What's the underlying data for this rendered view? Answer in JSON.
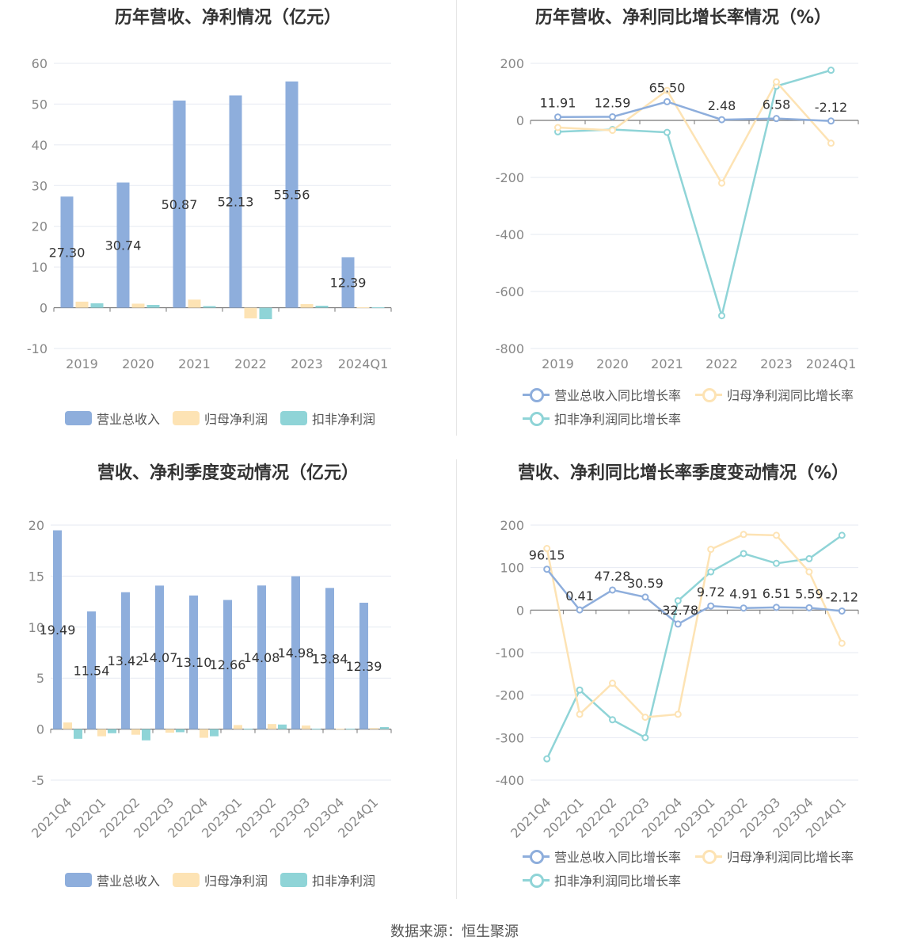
{
  "source_note": "数据来源：恒生聚源",
  "colors": {
    "revenue": "#8eaedc",
    "net_profit": "#fde3b4",
    "deducted": "#8fd4d7",
    "axis_text": "#888888",
    "grid": "#e6eaf2",
    "label": "#333333"
  },
  "chart_data": [
    {
      "type": "bar",
      "title": "历年营收、净利情况（亿元）",
      "categories": [
        "2019",
        "2020",
        "2021",
        "2022",
        "2023",
        "2024Q1"
      ],
      "ylim": [
        -10,
        60
      ],
      "yticks": [
        -10,
        0,
        10,
        20,
        30,
        40,
        50,
        60
      ],
      "grid": true,
      "legend_position": "bottom",
      "series": [
        {
          "name": "营业总收入",
          "color": "#8eaedc",
          "values": [
            27.3,
            30.74,
            50.87,
            52.13,
            55.56,
            12.39
          ],
          "labels": [
            "27.30",
            "30.74",
            "50.87",
            "52.13",
            "55.56",
            "12.39"
          ]
        },
        {
          "name": "归母净利润",
          "color": "#fde3b4",
          "values": [
            1.5,
            1.0,
            2.0,
            -2.6,
            0.9,
            0.1
          ]
        },
        {
          "name": "扣非净利润",
          "color": "#8fd4d7",
          "values": [
            1.1,
            0.7,
            0.4,
            -2.8,
            0.5,
            0.1
          ]
        }
      ]
    },
    {
      "type": "line",
      "title": "历年营收、净利同比增长率情况（%）",
      "categories": [
        "2019",
        "2020",
        "2021",
        "2022",
        "2023",
        "2024Q1"
      ],
      "ylim": [
        -800,
        200
      ],
      "yticks": [
        -800,
        -600,
        -400,
        -200,
        0,
        200
      ],
      "grid": true,
      "legend_position": "bottom",
      "series": [
        {
          "name": "营业总收入同比增长率",
          "color": "#8eaedc",
          "values": [
            11.91,
            12.59,
            65.5,
            2.48,
            6.58,
            -2.12
          ],
          "labels": [
            "11.91",
            "12.59",
            "65.50",
            "2.48",
            "6.58",
            "-2.12"
          ]
        },
        {
          "name": "归母净利润同比增长率",
          "color": "#fde3b4",
          "values": [
            -25,
            -35,
            105,
            -220,
            135,
            -80
          ]
        },
        {
          "name": "扣非净利润同比增长率",
          "color": "#8fd4d7",
          "values": [
            -40,
            -32,
            -42,
            -685,
            120,
            176
          ]
        }
      ]
    },
    {
      "type": "bar",
      "title": "营收、净利季度变动情况（亿元）",
      "categories": [
        "2021Q4",
        "2022Q1",
        "2022Q2",
        "2022Q3",
        "2022Q4",
        "2023Q1",
        "2023Q2",
        "2023Q3",
        "2023Q4",
        "2024Q1"
      ],
      "ylim": [
        -5,
        20
      ],
      "yticks": [
        -5,
        0,
        5,
        10,
        15,
        20
      ],
      "grid": true,
      "legend_position": "bottom",
      "series": [
        {
          "name": "营业总收入",
          "color": "#8eaedc",
          "values": [
            19.49,
            11.54,
            13.42,
            14.07,
            13.1,
            12.66,
            14.08,
            14.98,
            13.84,
            12.39
          ],
          "labels": [
            "19.49",
            "11.54",
            "13.42",
            "14.07",
            "13.10",
            "12.66",
            "14.08",
            "14.98",
            "13.84",
            "12.39"
          ]
        },
        {
          "name": "归母净利润",
          "color": "#fde3b4",
          "values": [
            0.65,
            -0.7,
            -0.55,
            -0.35,
            -0.85,
            0.4,
            0.5,
            0.35,
            0.05,
            0.1
          ]
        },
        {
          "name": "扣非净利润",
          "color": "#8fd4d7",
          "values": [
            -0.95,
            -0.4,
            -1.1,
            -0.3,
            -0.7,
            0.05,
            0.45,
            0.05,
            0.05,
            0.2
          ]
        }
      ]
    },
    {
      "type": "line",
      "title": "营收、净利同比增长率季度变动情况（%）",
      "categories": [
        "2021Q4",
        "2022Q1",
        "2022Q2",
        "2022Q3",
        "2022Q4",
        "2023Q1",
        "2023Q2",
        "2023Q3",
        "2023Q4",
        "2024Q1"
      ],
      "ylim": [
        -400,
        200
      ],
      "yticks": [
        -400,
        -300,
        -200,
        -100,
        0,
        100,
        200
      ],
      "grid": true,
      "legend_position": "bottom",
      "series": [
        {
          "name": "营业总收入同比增长率",
          "color": "#8eaedc",
          "values": [
            96.15,
            0.41,
            47.28,
            30.59,
            -32.78,
            9.72,
            4.91,
            6.51,
            5.59,
            -2.12
          ],
          "labels": [
            "96.15",
            "0.41",
            "47.28",
            "30.59",
            "-32.78",
            "9.72",
            "4.91",
            "6.51",
            "5.59",
            "-2.12"
          ]
        },
        {
          "name": "归母净利润同比增长率",
          "color": "#fde3b4",
          "values": [
            145,
            -245,
            -172,
            -252,
            -245,
            143,
            178,
            176,
            90,
            -78
          ]
        },
        {
          "name": "扣非净利润同比增长率",
          "color": "#8fd4d7",
          "values": [
            -350,
            -188,
            -258,
            -300,
            22,
            90,
            133,
            110,
            121,
            176
          ]
        }
      ]
    }
  ]
}
